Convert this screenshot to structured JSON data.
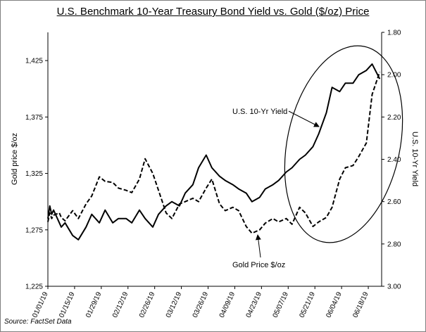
{
  "chart_data": {
    "type": "line",
    "title": "U.S. Benchmark 10-Year Treasury Bond Yield vs. Gold ($/oz) Price",
    "source": "Source: FactSet Data",
    "x_start": "2019-01-01",
    "x_end": "2019-06-25",
    "x_ticks": [
      "01/01/19",
      "01/15/19",
      "01/29/19",
      "02/12/19",
      "02/26/19",
      "03/12/19",
      "03/26/19",
      "04/09/19",
      "04/23/19",
      "05/07/19",
      "05/21/19",
      "06/04/19",
      "06/18/19"
    ],
    "y_left": {
      "label": "Gold price $/oz",
      "min": 1225,
      "max": 1450,
      "ticks": [
        "1,225",
        "1,275",
        "1,325",
        "1,375",
        "1,425"
      ]
    },
    "y_right": {
      "label": "U.S. 10-Yr Yield",
      "min": 1.8,
      "max": 3.0,
      "inverted": true,
      "ticks": [
        "1.80",
        "2.00",
        "2.20",
        "2.40",
        "2.60",
        "2.80",
        "3.00"
      ]
    },
    "series": [
      {
        "name": "U.S. 10-Yr Yield",
        "axis": "right",
        "style": "solid",
        "x": [
          "2019-01-01",
          "2019-01-02",
          "2019-01-03",
          "2019-01-04",
          "2019-01-07",
          "2019-01-08",
          "2019-01-10",
          "2019-01-14",
          "2019-01-17",
          "2019-01-21",
          "2019-01-24",
          "2019-01-28",
          "2019-01-31",
          "2019-02-04",
          "2019-02-07",
          "2019-02-11",
          "2019-02-14",
          "2019-02-18",
          "2019-02-21",
          "2019-02-25",
          "2019-02-28",
          "2019-03-04",
          "2019-03-07",
          "2019-03-11",
          "2019-03-14",
          "2019-03-18",
          "2019-03-21",
          "2019-03-25",
          "2019-03-28",
          "2019-04-01",
          "2019-04-04",
          "2019-04-08",
          "2019-04-11",
          "2019-04-15",
          "2019-04-18",
          "2019-04-22",
          "2019-04-25",
          "2019-04-29",
          "2019-05-02",
          "2019-05-06",
          "2019-05-09",
          "2019-05-13",
          "2019-05-16",
          "2019-05-20",
          "2019-05-23",
          "2019-05-27",
          "2019-05-30",
          "2019-06-03",
          "2019-06-06",
          "2019-06-10",
          "2019-06-13",
          "2019-06-17",
          "2019-06-20",
          "2019-06-24"
        ],
        "values": [
          2.68,
          2.62,
          2.66,
          2.64,
          2.7,
          2.72,
          2.7,
          2.76,
          2.78,
          2.72,
          2.66,
          2.7,
          2.64,
          2.7,
          2.68,
          2.68,
          2.7,
          2.64,
          2.68,
          2.72,
          2.66,
          2.62,
          2.6,
          2.62,
          2.56,
          2.52,
          2.44,
          2.38,
          2.44,
          2.48,
          2.5,
          2.52,
          2.54,
          2.56,
          2.6,
          2.58,
          2.54,
          2.52,
          2.5,
          2.46,
          2.44,
          2.4,
          2.38,
          2.34,
          2.28,
          2.18,
          2.06,
          2.08,
          2.04,
          2.04,
          2.0,
          1.98,
          1.95,
          2.02
        ]
      },
      {
        "name": "Gold Price $/oz",
        "axis": "left",
        "style": "dashed",
        "x": [
          "2019-01-01",
          "2019-01-02",
          "2019-01-03",
          "2019-01-04",
          "2019-01-07",
          "2019-01-08",
          "2019-01-10",
          "2019-01-14",
          "2019-01-17",
          "2019-01-21",
          "2019-01-24",
          "2019-01-28",
          "2019-01-31",
          "2019-02-04",
          "2019-02-07",
          "2019-02-11",
          "2019-02-14",
          "2019-02-18",
          "2019-02-21",
          "2019-02-25",
          "2019-02-28",
          "2019-03-04",
          "2019-03-07",
          "2019-03-11",
          "2019-03-14",
          "2019-03-18",
          "2019-03-21",
          "2019-03-25",
          "2019-03-28",
          "2019-04-01",
          "2019-04-04",
          "2019-04-08",
          "2019-04-11",
          "2019-04-15",
          "2019-04-18",
          "2019-04-22",
          "2019-04-25",
          "2019-04-29",
          "2019-05-02",
          "2019-05-06",
          "2019-05-09",
          "2019-05-13",
          "2019-05-16",
          "2019-05-20",
          "2019-05-23",
          "2019-05-27",
          "2019-05-30",
          "2019-06-03",
          "2019-06-06",
          "2019-06-10",
          "2019-06-13",
          "2019-06-17",
          "2019-06-20",
          "2019-06-24"
        ],
        "values": [
          1282,
          1290,
          1285,
          1288,
          1290,
          1286,
          1283,
          1292,
          1285,
          1298,
          1305,
          1322,
          1318,
          1317,
          1312,
          1310,
          1308,
          1320,
          1338,
          1325,
          1310,
          1290,
          1285,
          1298,
          1300,
          1303,
          1300,
          1312,
          1320,
          1298,
          1292,
          1295,
          1292,
          1278,
          1272,
          1275,
          1281,
          1285,
          1282,
          1285,
          1280,
          1295,
          1290,
          1278,
          1282,
          1286,
          1295,
          1320,
          1330,
          1332,
          1340,
          1352,
          1395,
          1415
        ]
      }
    ],
    "annotations": [
      {
        "text": "U.S. 10-Yr Yield",
        "points_to": "U.S. 10-Yr Yield"
      },
      {
        "text": "Gold Price $/oz",
        "points_to": "Gold Price $/oz"
      }
    ]
  }
}
